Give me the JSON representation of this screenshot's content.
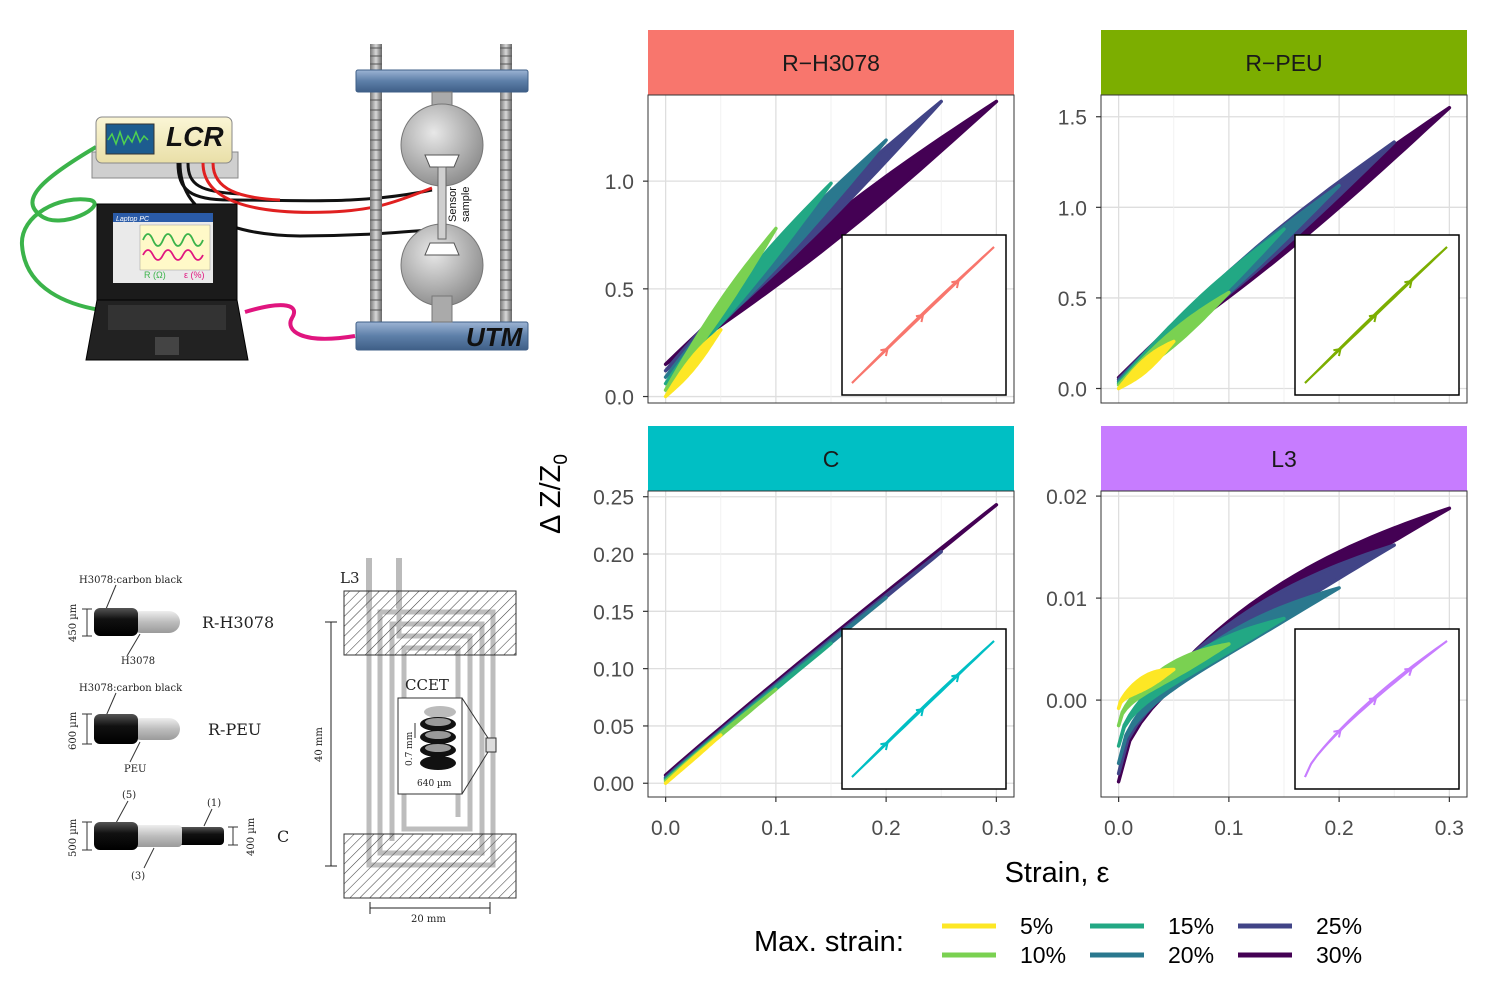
{
  "setup": {
    "instrument_label": "LCR",
    "machine_label": "UTM",
    "laptop_label": "Laptop PC",
    "resistance_label": "R (Ω)",
    "strain_label": "ε (%)",
    "sample_label_1": "Sensor",
    "sample_label_2": "sample",
    "colors": {
      "green_cable": "#3bb34a",
      "pink_cable": "#e0157f",
      "red_lead": "#e02020",
      "black_lead": "#111111",
      "frame_blue": "#6f8fb5"
    }
  },
  "sensors": {
    "rh3078": {
      "coat": "H3078:carbon black",
      "core": "H3078",
      "dim": "450 µm",
      "name": "R-H3078"
    },
    "rpeu": {
      "coat": "H3078:carbon black",
      "core": "PEU",
      "dim": "600 µm",
      "name": "R-PEU"
    },
    "c": {
      "n1": "(1)",
      "n3": "(3)",
      "n5": "(5)",
      "dim_left": "500 µm",
      "dim_right": "400 µm",
      "name": "C"
    }
  },
  "layout_l3": {
    "name": "L3",
    "inset_title": "CCET",
    "pitch": "0.7 mm",
    "width": "640 µm",
    "height_dim": "40 mm",
    "width_dim": "20 mm"
  },
  "chart": {
    "y_title": "Δ Z/Z",
    "y_title_sub": "0",
    "x_title": "Strain, ε",
    "legend_title": "Max. strain:"
  },
  "chart_data": {
    "type": "line",
    "facets": [
      {
        "name": "R−H3078",
        "strip_color": "#F8766D",
        "line_color": "#F8766D",
        "yticks": [
          0.0,
          0.5,
          1.0
        ],
        "ytick_labels": [
          "0.0",
          "0.5",
          "1.0"
        ],
        "ylim": [
          -0.03,
          1.4
        ],
        "series_end_y": [
          0.31,
          0.78,
          0.99,
          1.19,
          1.37,
          1.37
        ],
        "start_y": [
          0.0,
          0.03,
          0.06,
          0.09,
          0.12,
          0.15
        ]
      },
      {
        "name": "R−PEU",
        "strip_color": "#7CAE00",
        "line_color": "#7CAE00",
        "yticks": [
          0.0,
          0.5,
          1.0,
          1.5
        ],
        "ytick_labels": [
          "0.0",
          "0.5",
          "1.0",
          "1.5"
        ],
        "ylim": [
          -0.08,
          1.62
        ],
        "series_end_y": [
          0.26,
          0.53,
          0.88,
          1.12,
          1.36,
          1.55
        ],
        "start_y": [
          0.0,
          0.02,
          0.03,
          0.04,
          0.05,
          0.06
        ]
      },
      {
        "name": "C",
        "strip_color": "#00BFC4",
        "line_color": "#00BFC4",
        "yticks": [
          0.0,
          0.05,
          0.1,
          0.15,
          0.2,
          0.25
        ],
        "ytick_labels": [
          "0.00",
          "0.05",
          "0.10",
          "0.15",
          "0.20",
          "0.25"
        ],
        "ylim": [
          -0.012,
          0.255
        ],
        "series_end_y": [
          0.042,
          0.082,
          0.122,
          0.162,
          0.202,
          0.243
        ],
        "start_y": [
          0.0,
          0.002,
          0.003,
          0.004,
          0.005,
          0.007
        ]
      },
      {
        "name": "L3",
        "strip_color": "#C77CFF",
        "line_color": "#C77CFF",
        "yticks": [
          0.0,
          0.01,
          0.02
        ],
        "ytick_labels": [
          "0.00",
          "0.01",
          "0.02"
        ],
        "ylim": [
          -0.0095,
          0.0205
        ],
        "series_end_y": [
          0.003,
          0.0055,
          0.008,
          0.011,
          0.0152,
          0.0188
        ],
        "start_y": [
          -0.0008,
          -0.0025,
          -0.0045,
          -0.0062,
          -0.0072,
          -0.008
        ]
      }
    ],
    "x": {
      "ticks": [
        0.0,
        0.1,
        0.2,
        0.3
      ],
      "tick_labels": [
        "0.0",
        "0.1",
        "0.2",
        "0.3"
      ],
      "xlim": [
        -0.016,
        0.316
      ]
    },
    "series": [
      {
        "name": "5%",
        "max_strain": 0.05,
        "color": "#FDE725"
      },
      {
        "name": "10%",
        "max_strain": 0.1,
        "color": "#7AD151"
      },
      {
        "name": "15%",
        "max_strain": 0.15,
        "color": "#22A884"
      },
      {
        "name": "20%",
        "max_strain": 0.2,
        "color": "#2A788E"
      },
      {
        "name": "25%",
        "max_strain": 0.25,
        "color": "#414487"
      },
      {
        "name": "30%",
        "max_strain": 0.3,
        "color": "#440154"
      }
    ]
  }
}
